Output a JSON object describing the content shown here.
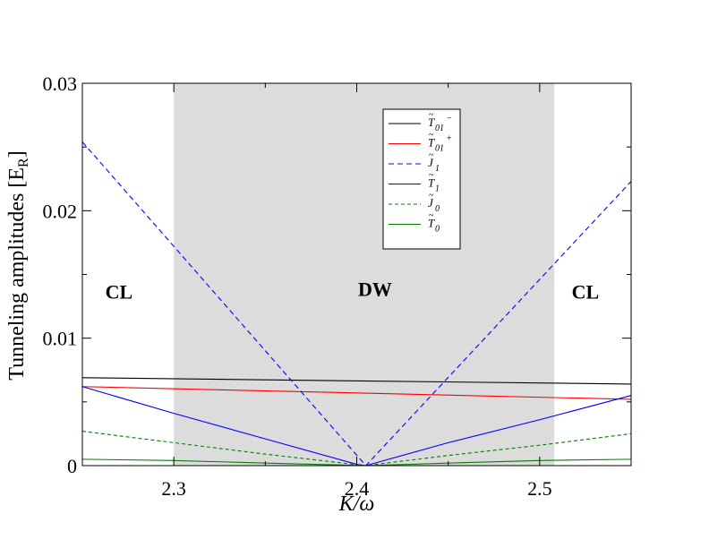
{
  "chart_data": {
    "type": "line",
    "xlabel": "K/ω",
    "ylabel": "Tunneling amplitudes [E",
    "ylabel_sub": "R",
    "ylabel_close": "]",
    "xlim": [
      2.25,
      2.55
    ],
    "ylim": [
      0,
      0.03
    ],
    "xticks": [
      2.3,
      2.4,
      2.5
    ],
    "xtick_labels": [
      "2.3",
      "2.4",
      "2.5"
    ],
    "yticks": [
      0,
      0.01,
      0.02,
      0.03
    ],
    "ytick_labels": [
      "0",
      "0.01",
      "0.02",
      "0.03"
    ],
    "shaded_region": {
      "x": [
        2.3,
        2.508
      ],
      "color": "#dcdcdc"
    },
    "regions": [
      {
        "label": "CL",
        "x": 2.27,
        "y": 0.0131
      },
      {
        "label": "DW",
        "x": 2.41,
        "y": 0.0133
      },
      {
        "label": "CL",
        "x": 2.525,
        "y": 0.0131
      }
    ],
    "legend_position": "upper-center",
    "series": [
      {
        "key": "T01m",
        "base": "T",
        "sub": "01",
        "sup": "−",
        "color": "#000000",
        "dash": "",
        "x": [
          2.25,
          2.55
        ],
        "y": [
          0.0069,
          0.0064
        ]
      },
      {
        "key": "T01p",
        "base": "T",
        "sub": "01",
        "sup": "+",
        "color": "#ff0000",
        "dash": "",
        "x": [
          2.25,
          2.55
        ],
        "y": [
          0.0062,
          0.0052
        ]
      },
      {
        "key": "J1",
        "base": "J",
        "sub": "1",
        "sup": "",
        "color": "#0000ff",
        "dash": "6,4",
        "x": [
          2.25,
          2.405,
          2.55
        ],
        "y": [
          0.0254,
          0.0,
          0.0223
        ]
      },
      {
        "key": "T1",
        "base": "T",
        "sub": "1",
        "sup": "",
        "color": "#0000ff",
        "dash": "",
        "x": [
          2.25,
          2.3,
          2.35,
          2.4,
          2.405,
          2.45,
          2.5,
          2.55
        ],
        "y": [
          0.0062,
          0.0041,
          0.0021,
          0.0001,
          0.0,
          0.0018,
          0.0036,
          0.0055
        ]
      },
      {
        "key": "J0",
        "base": "J",
        "sub": "0",
        "sup": "",
        "color": "#008000",
        "dash": "4,3",
        "x": [
          2.25,
          2.3,
          2.35,
          2.405,
          2.45,
          2.5,
          2.55
        ],
        "y": [
          0.0027,
          0.0018,
          0.0009,
          0.0,
          0.0008,
          0.0016,
          0.0025
        ]
      },
      {
        "key": "T0",
        "base": "T",
        "sub": "0",
        "sup": "",
        "color": "#008000",
        "dash": "",
        "x": [
          2.25,
          2.3,
          2.35,
          2.405,
          2.45,
          2.5,
          2.55
        ],
        "y": [
          0.0005,
          0.0004,
          0.0002,
          0.0,
          0.0002,
          0.0004,
          0.0005
        ]
      }
    ]
  }
}
